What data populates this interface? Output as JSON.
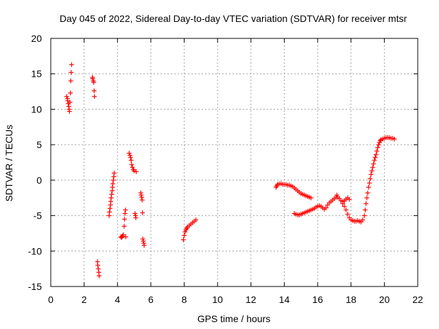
{
  "chart_data": {
    "type": "scatter",
    "title": "Day 045 of 2022, Sidereal Day-to-day VTEC variation (SDTVAR) for receiver mtsr",
    "xlabel": "GPS time / hours",
    "ylabel": "SDTVAR / TECUs",
    "xlim": [
      0,
      22
    ],
    "ylim": [
      -15,
      20
    ],
    "xticks": [
      0,
      2,
      4,
      6,
      8,
      10,
      12,
      14,
      16,
      18,
      20,
      22
    ],
    "yticks": [
      -15,
      -10,
      -5,
      0,
      5,
      10,
      15,
      20
    ],
    "grid": true,
    "marker": "+",
    "color": "#ff0000",
    "series": [
      {
        "name": "SDTVAR",
        "points": [
          [
            0.95,
            11.8
          ],
          [
            1.0,
            11.5
          ],
          [
            1.02,
            11.2
          ],
          [
            1.05,
            10.8
          ],
          [
            1.08,
            10.4
          ],
          [
            1.1,
            10.0
          ],
          [
            1.12,
            9.7
          ],
          [
            1.15,
            11.0
          ],
          [
            1.18,
            12.3
          ],
          [
            1.2,
            14.0
          ],
          [
            1.22,
            15.2
          ],
          [
            1.25,
            16.3
          ],
          [
            2.5,
            14.5
          ],
          [
            2.52,
            14.3
          ],
          [
            2.55,
            14.0
          ],
          [
            2.58,
            13.8
          ],
          [
            2.6,
            12.6
          ],
          [
            2.62,
            11.8
          ],
          [
            2.8,
            -11.5
          ],
          [
            2.82,
            -12.0
          ],
          [
            2.85,
            -12.5
          ],
          [
            2.88,
            -13.0
          ],
          [
            2.9,
            -13.5
          ],
          [
            3.5,
            -5.0
          ],
          [
            3.52,
            -4.5
          ],
          [
            3.55,
            -4.0
          ],
          [
            3.58,
            -3.5
          ],
          [
            3.6,
            -3.0
          ],
          [
            3.62,
            -2.5
          ],
          [
            3.65,
            -2.0
          ],
          [
            3.68,
            -1.5
          ],
          [
            3.7,
            -1.0
          ],
          [
            3.72,
            -0.5
          ],
          [
            3.75,
            0.0
          ],
          [
            3.78,
            0.5
          ],
          [
            3.8,
            1.0
          ],
          [
            4.2,
            -8.0
          ],
          [
            4.25,
            -8.1
          ],
          [
            4.3,
            -7.9
          ],
          [
            4.35,
            -7.7
          ],
          [
            4.4,
            -6.5
          ],
          [
            4.42,
            -5.5
          ],
          [
            4.45,
            -4.7
          ],
          [
            4.48,
            -4.2
          ],
          [
            4.5,
            -8.0
          ],
          [
            4.7,
            3.8
          ],
          [
            4.75,
            3.5
          ],
          [
            4.78,
            3.2
          ],
          [
            4.82,
            2.8
          ],
          [
            4.85,
            2.2
          ],
          [
            4.9,
            1.8
          ],
          [
            4.95,
            1.5
          ],
          [
            5.0,
            1.3
          ],
          [
            5.05,
            -4.7
          ],
          [
            5.08,
            -5.0
          ],
          [
            5.1,
            -5.3
          ],
          [
            5.12,
            1.2
          ],
          [
            5.4,
            -1.8
          ],
          [
            5.42,
            -2.1
          ],
          [
            5.45,
            -2.4
          ],
          [
            5.48,
            -2.8
          ],
          [
            5.5,
            -4.6
          ],
          [
            5.52,
            -8.3
          ],
          [
            5.55,
            -8.6
          ],
          [
            5.58,
            -8.9
          ],
          [
            5.6,
            -9.2
          ],
          [
            7.95,
            -8.4
          ],
          [
            8.0,
            -7.8
          ],
          [
            8.05,
            -7.3
          ],
          [
            8.1,
            -7.0
          ],
          [
            8.15,
            -6.8
          ],
          [
            8.2,
            -6.6
          ],
          [
            8.3,
            -6.4
          ],
          [
            8.4,
            -6.2
          ],
          [
            8.5,
            -6.0
          ],
          [
            8.6,
            -5.8
          ],
          [
            8.7,
            -5.6
          ],
          [
            13.5,
            -1.0
          ],
          [
            13.55,
            -0.8
          ],
          [
            13.6,
            -0.6
          ],
          [
            13.7,
            -0.5
          ],
          [
            13.8,
            -0.5
          ],
          [
            13.9,
            -0.6
          ],
          [
            14.0,
            -0.6
          ],
          [
            14.1,
            -0.6
          ],
          [
            14.2,
            -0.7
          ],
          [
            14.3,
            -0.7
          ],
          [
            14.4,
            -0.8
          ],
          [
            14.5,
            -0.9
          ],
          [
            14.6,
            -1.1
          ],
          [
            14.7,
            -1.3
          ],
          [
            14.8,
            -1.5
          ],
          [
            14.9,
            -1.7
          ],
          [
            15.0,
            -1.9
          ],
          [
            15.1,
            -2.0
          ],
          [
            15.2,
            -2.1
          ],
          [
            15.3,
            -2.2
          ],
          [
            15.4,
            -2.3
          ],
          [
            15.5,
            -2.4
          ],
          [
            15.6,
            -2.5
          ],
          [
            14.6,
            -4.7
          ],
          [
            14.7,
            -4.8
          ],
          [
            14.8,
            -4.9
          ],
          [
            14.9,
            -4.9
          ],
          [
            15.0,
            -4.8
          ],
          [
            15.1,
            -4.7
          ],
          [
            15.2,
            -4.6
          ],
          [
            15.3,
            -4.5
          ],
          [
            15.4,
            -4.4
          ],
          [
            15.5,
            -4.3
          ],
          [
            15.6,
            -4.2
          ],
          [
            15.7,
            -4.1
          ],
          [
            15.8,
            -4.0
          ],
          [
            15.9,
            -3.8
          ],
          [
            16.0,
            -3.7
          ],
          [
            16.1,
            -3.6
          ],
          [
            16.2,
            -3.7
          ],
          [
            16.3,
            -3.9
          ],
          [
            16.4,
            -4.1
          ],
          [
            16.5,
            -3.9
          ],
          [
            16.6,
            -3.5
          ],
          [
            16.7,
            -3.2
          ],
          [
            16.8,
            -3.0
          ],
          [
            16.9,
            -2.8
          ],
          [
            17.0,
            -2.6
          ],
          [
            17.1,
            -2.4
          ],
          [
            17.15,
            -2.1
          ],
          [
            17.2,
            -2.4
          ],
          [
            17.3,
            -2.6
          ],
          [
            17.4,
            -2.9
          ],
          [
            17.5,
            -3.0
          ],
          [
            17.6,
            -2.9
          ],
          [
            17.7,
            -2.7
          ],
          [
            17.8,
            -2.5
          ],
          [
            17.9,
            -2.7
          ],
          [
            17.5,
            -3.3
          ],
          [
            17.6,
            -3.7
          ],
          [
            17.7,
            -4.2
          ],
          [
            17.8,
            -4.8
          ],
          [
            17.9,
            -5.3
          ],
          [
            18.0,
            -5.6
          ],
          [
            18.1,
            -5.7
          ],
          [
            18.2,
            -5.8
          ],
          [
            18.3,
            -5.8
          ],
          [
            18.4,
            -5.7
          ],
          [
            18.5,
            -5.8
          ],
          [
            18.6,
            -5.9
          ],
          [
            18.7,
            -5.6
          ],
          [
            18.8,
            -5.0
          ],
          [
            18.85,
            -4.2
          ],
          [
            18.9,
            -3.3
          ],
          [
            18.95,
            -2.5
          ],
          [
            19.0,
            -1.8
          ],
          [
            19.05,
            -1.0
          ],
          [
            19.1,
            -0.4
          ],
          [
            19.15,
            0.2
          ],
          [
            19.2,
            0.8
          ],
          [
            19.25,
            1.3
          ],
          [
            19.3,
            1.8
          ],
          [
            19.35,
            2.3
          ],
          [
            19.4,
            2.8
          ],
          [
            19.45,
            3.2
          ],
          [
            19.5,
            3.6
          ],
          [
            19.55,
            4.1
          ],
          [
            19.6,
            4.6
          ],
          [
            19.65,
            5.0
          ],
          [
            19.7,
            5.3
          ],
          [
            19.75,
            5.6
          ],
          [
            19.8,
            5.7
          ],
          [
            19.9,
            5.8
          ],
          [
            20.0,
            5.9
          ],
          [
            20.1,
            6.0
          ],
          [
            20.2,
            6.0
          ],
          [
            20.3,
            6.0
          ],
          [
            20.4,
            5.9
          ],
          [
            20.5,
            5.9
          ],
          [
            20.6,
            5.8
          ]
        ]
      }
    ]
  }
}
